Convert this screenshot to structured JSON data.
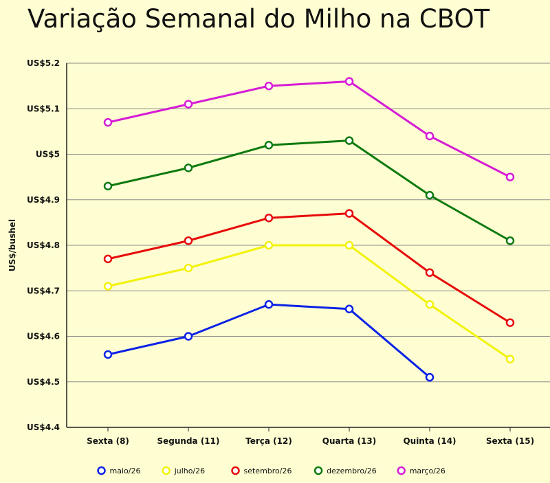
{
  "chart_data": {
    "type": "line",
    "title": "Variação Semanal do Milho na CBOT",
    "ylabel": "US$/bushel",
    "xlabel": "",
    "categories": [
      "Sexta (8)",
      "Segunda (11)",
      "Terça (12)",
      "Quarta (13)",
      "Quinta (14)",
      "Sexta (15)"
    ],
    "ylim": [
      4.4,
      5.2
    ],
    "yticks": [
      4.4,
      4.5,
      4.6,
      4.7,
      4.8,
      4.9,
      5.0,
      5.1,
      5.2
    ],
    "ytick_labels": [
      "US$4.4",
      "US$4.5",
      "US$4.6",
      "US$4.7",
      "US$4.8",
      "US$4.9",
      "US$5",
      "US$5.1",
      "US$5.2"
    ],
    "grid": true,
    "legend_position": "bottom",
    "series": [
      {
        "name": "maio/26",
        "color": "#0b22e6",
        "values": [
          4.56,
          4.6,
          4.67,
          4.66,
          4.51,
          null
        ]
      },
      {
        "name": "julho/26",
        "color": "#f2f20a",
        "values": [
          4.71,
          4.75,
          4.8,
          4.8,
          4.67,
          4.55
        ]
      },
      {
        "name": "setembro/26",
        "color": "#e60b0b",
        "values": [
          4.77,
          4.81,
          4.86,
          4.87,
          4.74,
          4.63
        ]
      },
      {
        "name": "dezembro/26",
        "color": "#0f7a0f",
        "values": [
          4.93,
          4.97,
          5.02,
          5.03,
          4.91,
          4.81
        ]
      },
      {
        "name": "março/26",
        "color": "#d61cd6",
        "values": [
          5.07,
          5.11,
          5.15,
          5.16,
          5.04,
          4.95
        ]
      }
    ]
  }
}
